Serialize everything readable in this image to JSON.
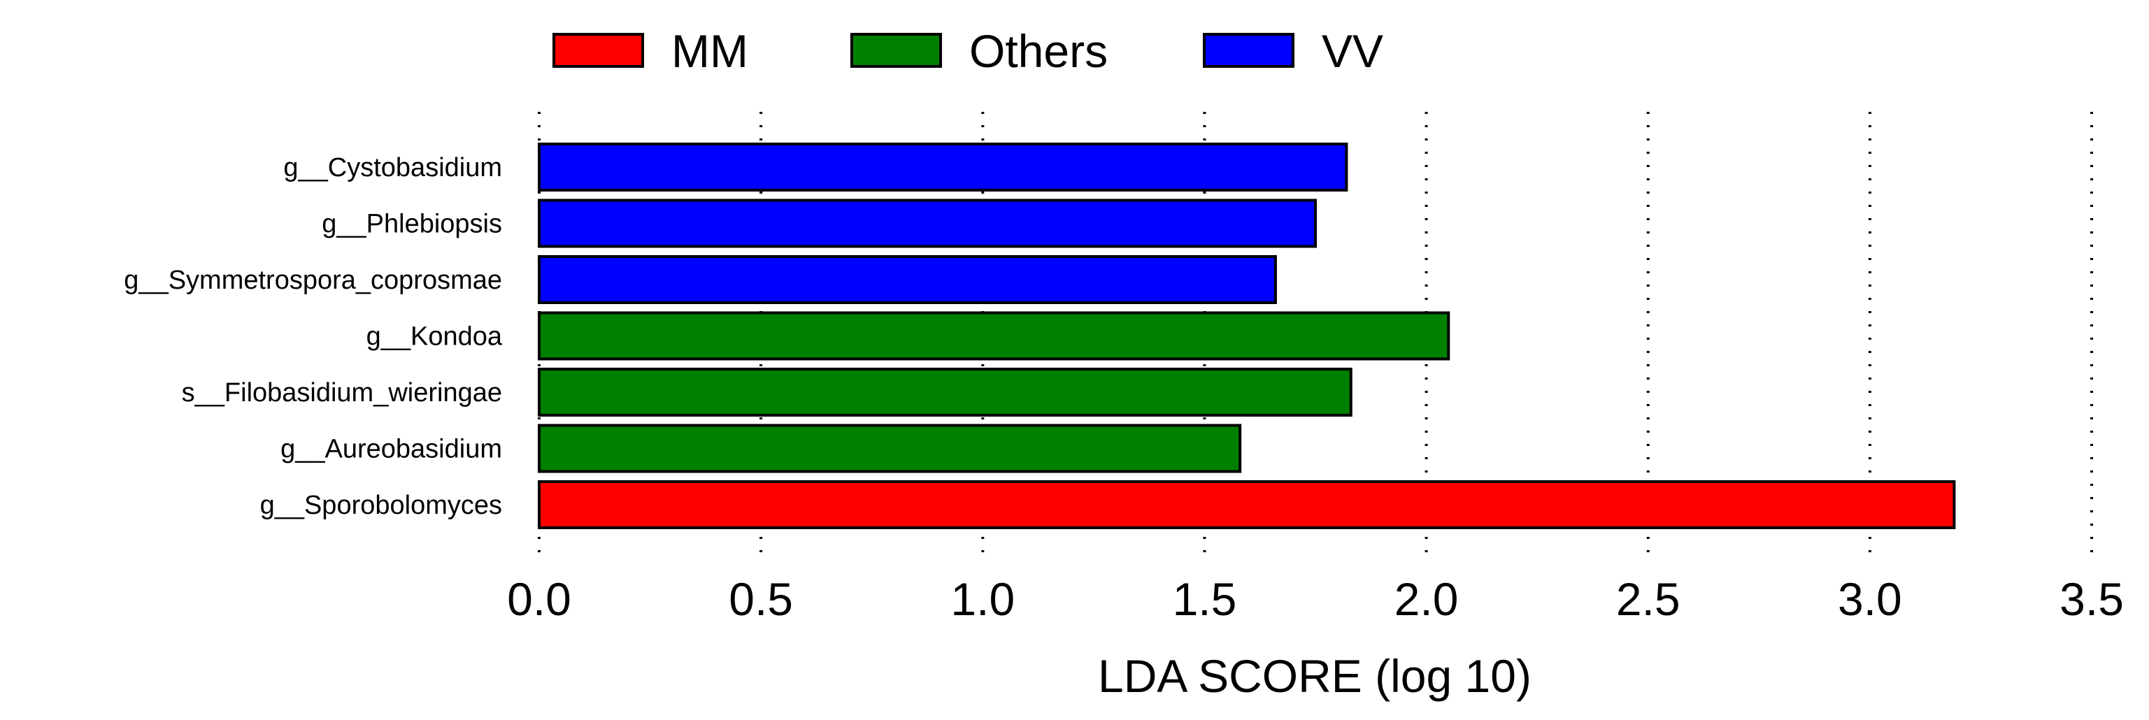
{
  "chart_data": {
    "type": "bar",
    "orientation": "horizontal",
    "title": "",
    "xlabel": "LDA SCORE (log 10)",
    "ylabel": "",
    "xlim": [
      0.0,
      3.5
    ],
    "xticks": [
      0.0,
      0.5,
      1.0,
      1.5,
      2.0,
      2.5,
      3.0,
      3.5
    ],
    "xtick_labels": [
      "0.0",
      "0.5",
      "1.0",
      "1.5",
      "2.0",
      "2.5",
      "3.0",
      "3.5"
    ],
    "grid": "x-dotted",
    "legend_position": "top",
    "legend": [
      {
        "name": "MM",
        "color": "#ff0000"
      },
      {
        "name": "Others",
        "color": "#008000"
      },
      {
        "name": "VV",
        "color": "#0000ff"
      }
    ],
    "bars": [
      {
        "label": "g__Cystobasidium",
        "value": 1.82,
        "group": "VV"
      },
      {
        "label": "g__Phlebiopsis",
        "value": 1.75,
        "group": "VV"
      },
      {
        "label": "g__Symmetrospora_coprosmae",
        "value": 1.66,
        "group": "VV"
      },
      {
        "label": "g__Kondoa",
        "value": 2.05,
        "group": "Others"
      },
      {
        "label": "s__Filobasidium_wieringae",
        "value": 1.83,
        "group": "Others"
      },
      {
        "label": "g__Aureobasidium",
        "value": 1.58,
        "group": "Others"
      },
      {
        "label": "g__Sporobolomyces",
        "value": 3.19,
        "group": "MM"
      }
    ]
  }
}
